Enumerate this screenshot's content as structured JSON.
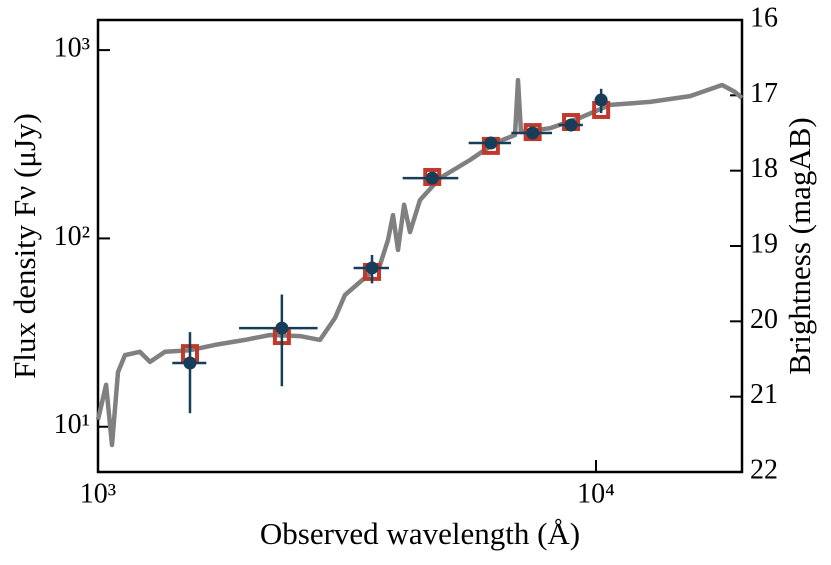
{
  "chart_data": {
    "type": "sed",
    "xlabel": "Observed wavelength (Å)",
    "ylabel": "Flux density Fν (μJy)",
    "y2label": "Brightness (magAB)",
    "xscale": "log",
    "yscale": "log",
    "xlim": [
      1000,
      19640
    ],
    "ylim": [
      5.75,
      1445
    ],
    "y2lim": [
      22,
      16
    ],
    "xticks": [
      {
        "value": 1000,
        "label": "10³"
      },
      {
        "value": 10000,
        "label": "10⁴"
      }
    ],
    "yticks": [
      {
        "value": 10,
        "label": "10¹"
      },
      {
        "value": 100,
        "label": "10²"
      },
      {
        "value": 1000,
        "label": "10³"
      }
    ],
    "y2ticks": [
      16,
      17,
      18,
      19,
      20,
      21,
      22
    ],
    "series": [
      {
        "kind": "line",
        "color": "#808080",
        "x": [
          1000,
          1038,
          1067,
          1097,
          1133,
          1214,
          1272,
          1363,
          1530,
          1718,
          1973,
          2215,
          2545,
          2791,
          2991,
          3133,
          3358,
          3684,
          3823,
          3912,
          4004,
          4117,
          4232,
          4432,
          4860,
          5585,
          6268,
          6877,
          6973,
          7070,
          8083,
          9288,
          10670,
          12840,
          15450,
          17910,
          19010,
          19640
        ],
        "values": [
          10.9,
          16.7,
          8.0,
          19.5,
          24.0,
          25.0,
          22.1,
          25.0,
          25.5,
          27.2,
          28.9,
          30.7,
          30.3,
          28.9,
          37.8,
          50.1,
          58.7,
          72.3,
          98.2,
          133,
          86.9,
          151,
          108,
          160,
          209,
          261,
          321,
          354,
          693,
          367,
          385,
          437,
          512,
          531,
          570,
          653,
          600,
          557
        ]
      },
      {
        "kind": "square",
        "color": "#c0392b",
        "x": [
          1530,
          2340,
          3550,
          4690,
          6150,
          7460,
          8910,
          10240
        ],
        "values": [
          24.6,
          30.3,
          66.4,
          212,
          310,
          367,
          415,
          481
        ]
      },
      {
        "kind": "errorbar",
        "color": "#173d59",
        "x": [
          1530,
          2340,
          3550,
          4690,
          6150,
          7460,
          8910,
          10240
        ],
        "xerr": [
          120,
          420,
          290,
          600,
          600,
          700,
          500,
          300
        ],
        "values": [
          21.8,
          33.4,
          69.7,
          209,
          321,
          363,
          400,
          543
        ],
        "yerr": [
          10,
          17,
          12,
          10,
          15,
          20,
          30,
          80
        ]
      }
    ]
  }
}
